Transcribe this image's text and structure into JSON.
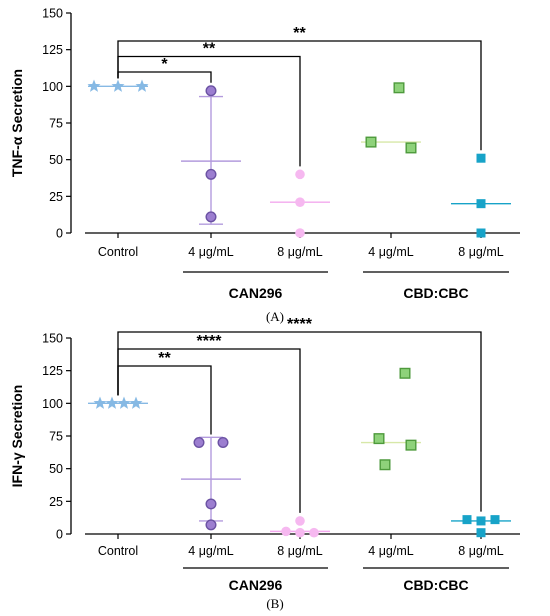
{
  "colors": {
    "control": "#86B9E4",
    "can296_4": "#9C7ED0",
    "can296_4_edge": "#6B52A3",
    "can296_8": "#F6B8F0",
    "cbdcbc_4": "#8ED27A",
    "cbdcbc_4_edge": "#4E9A3C",
    "cbdcbc_8": "#17A3C8",
    "mean_line_control": "#86B9E4",
    "mean_line_can296_4": "#B39BDD",
    "mean_line_can296_8": "#F3A9EE",
    "mean_line_cbdcbc_4": "#D7E8A8",
    "mean_line_cbdcbc_8": "#17A3C8"
  },
  "chart_data": [
    {
      "type": "scatter",
      "panel_label": "(A)",
      "ylabel": "TNF-α Secretion",
      "ylim": [
        0,
        150
      ],
      "yticks": [
        0,
        25,
        50,
        75,
        100,
        125,
        150
      ],
      "categories": [
        "Control",
        "4 μg/mL",
        "8 μg/mL",
        "4 μg/mL",
        "8 μg/mL"
      ],
      "groups": [
        {
          "label": "CAN296",
          "categories": [
            1,
            2
          ]
        },
        {
          "label": "CBD:CBC",
          "categories": [
            3,
            4
          ]
        }
      ],
      "series": [
        {
          "category": "Control",
          "marker": "star",
          "color_key": "control",
          "values": [
            100,
            100,
            100
          ],
          "center": 100
        },
        {
          "category": "CAN296 4 μg/mL",
          "marker": "circle",
          "color_key": "can296_4",
          "values": [
            97,
            40,
            11
          ],
          "center": 49,
          "error": [
            6,
            93
          ]
        },
        {
          "category": "CAN296 8 μg/mL",
          "marker": "circle",
          "color_key": "can296_8",
          "values": [
            40,
            21,
            0
          ],
          "center": 21
        },
        {
          "category": "CBD:CBC 4 μg/mL",
          "marker": "square",
          "color_key": "cbdcbc_4",
          "values": [
            99,
            62,
            58
          ],
          "center": 62
        },
        {
          "category": "CBD:CBC 8 μg/mL",
          "marker": "square-filled",
          "color_key": "cbdcbc_8",
          "values": [
            51,
            20,
            0
          ],
          "center": 20
        }
      ],
      "significance": [
        {
          "from": 0,
          "to": 1,
          "label": "*"
        },
        {
          "from": 0,
          "to": 2,
          "label": "**"
        },
        {
          "from": 0,
          "to": 4,
          "label": "**"
        }
      ]
    },
    {
      "type": "scatter",
      "panel_label": "(B)",
      "ylabel": "IFN-γ  Secretion",
      "ylim": [
        0,
        150
      ],
      "yticks": [
        0,
        25,
        50,
        75,
        100,
        125,
        150
      ],
      "categories": [
        "Control",
        "4 μg/mL",
        "8 μg/mL",
        "4 μg/mL",
        "8 μg/mL"
      ],
      "groups": [
        {
          "label": "CAN296",
          "categories": [
            1,
            2
          ]
        },
        {
          "label": "CBD:CBC",
          "categories": [
            3,
            4
          ]
        }
      ],
      "series": [
        {
          "category": "Control",
          "marker": "star",
          "color_key": "control",
          "values": [
            100,
            100,
            100,
            100
          ],
          "center": 100
        },
        {
          "category": "CAN296 4 μg/mL",
          "marker": "circle",
          "color_key": "can296_4",
          "values": [
            70,
            70,
            23,
            7
          ],
          "center": 42,
          "error": [
            10,
            74
          ]
        },
        {
          "category": "CAN296 8 μg/mL",
          "marker": "circle",
          "color_key": "can296_8",
          "values": [
            10,
            2,
            1,
            1
          ],
          "center": 2
        },
        {
          "category": "CBD:CBC 4 μg/mL",
          "marker": "square",
          "color_key": "cbdcbc_4",
          "values": [
            123,
            73,
            68,
            53
          ],
          "center": 70
        },
        {
          "category": "CBD:CBC 8 μg/mL",
          "marker": "square-filled",
          "color_key": "cbdcbc_8",
          "values": [
            11,
            10,
            11,
            1
          ],
          "center": 10
        }
      ],
      "significance": [
        {
          "from": 0,
          "to": 1,
          "label": "**"
        },
        {
          "from": 0,
          "to": 2,
          "label": "****"
        },
        {
          "from": 0,
          "to": 4,
          "label": "****"
        }
      ]
    }
  ]
}
